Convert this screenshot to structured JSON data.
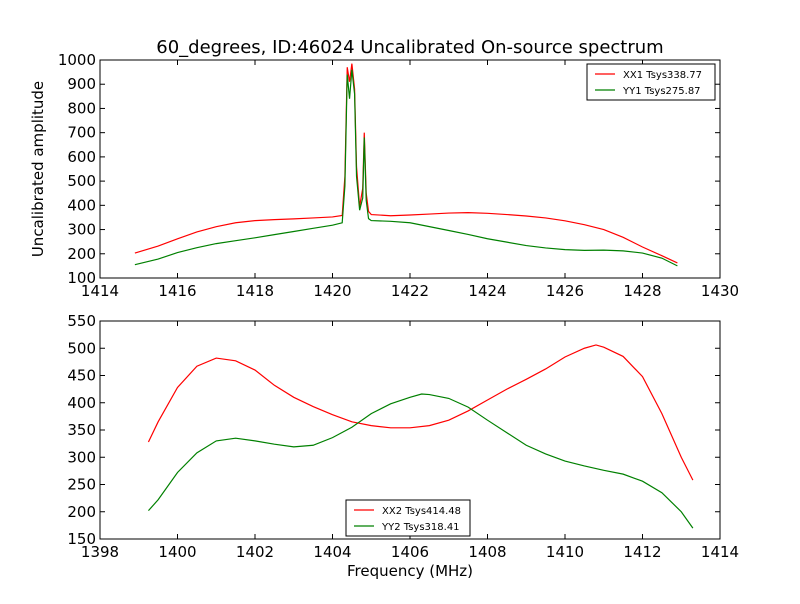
{
  "title": "60_degrees, ID:46024 Uncalibrated On-source spectrum",
  "chart_data": [
    {
      "type": "line",
      "title": "60_degrees, ID:46024 Uncalibrated On-source spectrum",
      "xlabel": "",
      "ylabel": "Uncalibrated amplitude",
      "xlim": [
        1414,
        1430
      ],
      "ylim": [
        100,
        1000
      ],
      "xticks": [
        1414,
        1416,
        1418,
        1420,
        1422,
        1424,
        1426,
        1428,
        1430
      ],
      "yticks": [
        100,
        200,
        300,
        400,
        500,
        600,
        700,
        800,
        900,
        1000
      ],
      "legend_position": "top-right",
      "grid": false,
      "series": [
        {
          "name": "XX1 Tsys338.77",
          "color": "#ff0000",
          "points": [
            [
              1414.9,
              203
            ],
            [
              1415.5,
              232
            ],
            [
              1416,
              262
            ],
            [
              1416.5,
              290
            ],
            [
              1417,
              312
            ],
            [
              1417.5,
              328
            ],
            [
              1418,
              337
            ],
            [
              1418.5,
              341
            ],
            [
              1419,
              344
            ],
            [
              1419.5,
              348
            ],
            [
              1420,
              352
            ],
            [
              1420.25,
              358
            ],
            [
              1420.32,
              520
            ],
            [
              1420.38,
              970
            ],
            [
              1420.44,
              910
            ],
            [
              1420.5,
              985
            ],
            [
              1420.57,
              880
            ],
            [
              1420.62,
              560
            ],
            [
              1420.7,
              395
            ],
            [
              1420.78,
              470
            ],
            [
              1420.82,
              700
            ],
            [
              1420.87,
              450
            ],
            [
              1420.93,
              375
            ],
            [
              1421,
              362
            ],
            [
              1421.5,
              357
            ],
            [
              1422,
              360
            ],
            [
              1422.5,
              364
            ],
            [
              1423,
              368
            ],
            [
              1423.5,
              370
            ],
            [
              1424,
              367
            ],
            [
              1424.5,
              362
            ],
            [
              1425,
              356
            ],
            [
              1425.5,
              348
            ],
            [
              1426,
              336
            ],
            [
              1426.5,
              320
            ],
            [
              1427,
              300
            ],
            [
              1427.5,
              268
            ],
            [
              1428,
              228
            ],
            [
              1428.5,
              192
            ],
            [
              1428.9,
              162
            ]
          ]
        },
        {
          "name": "YY1 Tsys275.87",
          "color": "#008000",
          "points": [
            [
              1414.9,
              155
            ],
            [
              1415.5,
              178
            ],
            [
              1416,
              205
            ],
            [
              1416.5,
              225
            ],
            [
              1417,
              242
            ],
            [
              1417.5,
              254
            ],
            [
              1418,
              266
            ],
            [
              1418.5,
              279
            ],
            [
              1419,
              292
            ],
            [
              1419.5,
              305
            ],
            [
              1420,
              318
            ],
            [
              1420.25,
              328
            ],
            [
              1420.32,
              480
            ],
            [
              1420.38,
              940
            ],
            [
              1420.44,
              840
            ],
            [
              1420.5,
              960
            ],
            [
              1420.57,
              860
            ],
            [
              1420.62,
              520
            ],
            [
              1420.7,
              380
            ],
            [
              1420.78,
              430
            ],
            [
              1420.82,
              680
            ],
            [
              1420.87,
              420
            ],
            [
              1420.93,
              345
            ],
            [
              1421,
              337
            ],
            [
              1421.5,
              334
            ],
            [
              1422,
              328
            ],
            [
              1422.5,
              312
            ],
            [
              1423,
              296
            ],
            [
              1423.5,
              280
            ],
            [
              1424,
              262
            ],
            [
              1424.5,
              248
            ],
            [
              1425,
              234
            ],
            [
              1425.5,
              224
            ],
            [
              1426,
              217
            ],
            [
              1426.5,
              214
            ],
            [
              1427,
              215
            ],
            [
              1427.5,
              212
            ],
            [
              1428,
              203
            ],
            [
              1428.5,
              182
            ],
            [
              1428.9,
              150
            ]
          ]
        }
      ]
    },
    {
      "type": "line",
      "title": "",
      "xlabel": "Frequency (MHz)",
      "ylabel": "",
      "xlim": [
        1398,
        1414
      ],
      "ylim": [
        150,
        550
      ],
      "xticks": [
        1398,
        1400,
        1402,
        1404,
        1406,
        1408,
        1410,
        1412,
        1414
      ],
      "yticks": [
        150,
        200,
        250,
        300,
        350,
        400,
        450,
        500,
        550
      ],
      "legend_position": "bottom-center",
      "grid": false,
      "series": [
        {
          "name": "XX2 Tsys414.48",
          "color": "#ff0000",
          "points": [
            [
              1399.25,
              328
            ],
            [
              1399.5,
              365
            ],
            [
              1400,
              428
            ],
            [
              1400.5,
              467
            ],
            [
              1401,
              482
            ],
            [
              1401.5,
              477
            ],
            [
              1402,
              460
            ],
            [
              1402.5,
              432
            ],
            [
              1403,
              410
            ],
            [
              1403.5,
              393
            ],
            [
              1404,
              378
            ],
            [
              1404.5,
              365
            ],
            [
              1405,
              358
            ],
            [
              1405.5,
              354
            ],
            [
              1406,
              354
            ],
            [
              1406.5,
              358
            ],
            [
              1407,
              368
            ],
            [
              1407.5,
              385
            ],
            [
              1408,
              405
            ],
            [
              1408.5,
              425
            ],
            [
              1409,
              443
            ],
            [
              1409.5,
              462
            ],
            [
              1410,
              484
            ],
            [
              1410.5,
              500
            ],
            [
              1410.8,
              506
            ],
            [
              1411,
              502
            ],
            [
              1411.5,
              485
            ],
            [
              1412,
              448
            ],
            [
              1412.5,
              380
            ],
            [
              1413,
              300
            ],
            [
              1413.3,
              258
            ]
          ]
        },
        {
          "name": "YY2 Tsys318.41",
          "color": "#008000",
          "points": [
            [
              1399.25,
              202
            ],
            [
              1399.5,
              222
            ],
            [
              1400,
              272
            ],
            [
              1400.5,
              308
            ],
            [
              1401,
              330
            ],
            [
              1401.5,
              335
            ],
            [
              1402,
              330
            ],
            [
              1402.5,
              324
            ],
            [
              1403,
              319
            ],
            [
              1403.5,
              322
            ],
            [
              1404,
              336
            ],
            [
              1404.5,
              355
            ],
            [
              1405,
              380
            ],
            [
              1405.5,
              398
            ],
            [
              1406,
              410
            ],
            [
              1406.3,
              416
            ],
            [
              1406.5,
              415
            ],
            [
              1407,
              408
            ],
            [
              1407.5,
              392
            ],
            [
              1408,
              368
            ],
            [
              1408.5,
              345
            ],
            [
              1409,
              322
            ],
            [
              1409.5,
              306
            ],
            [
              1410,
              293
            ],
            [
              1410.5,
              284
            ],
            [
              1411,
              276
            ],
            [
              1411.5,
              269
            ],
            [
              1412,
              256
            ],
            [
              1412.5,
              235
            ],
            [
              1413,
              200
            ],
            [
              1413.3,
              170
            ]
          ]
        }
      ]
    }
  ]
}
